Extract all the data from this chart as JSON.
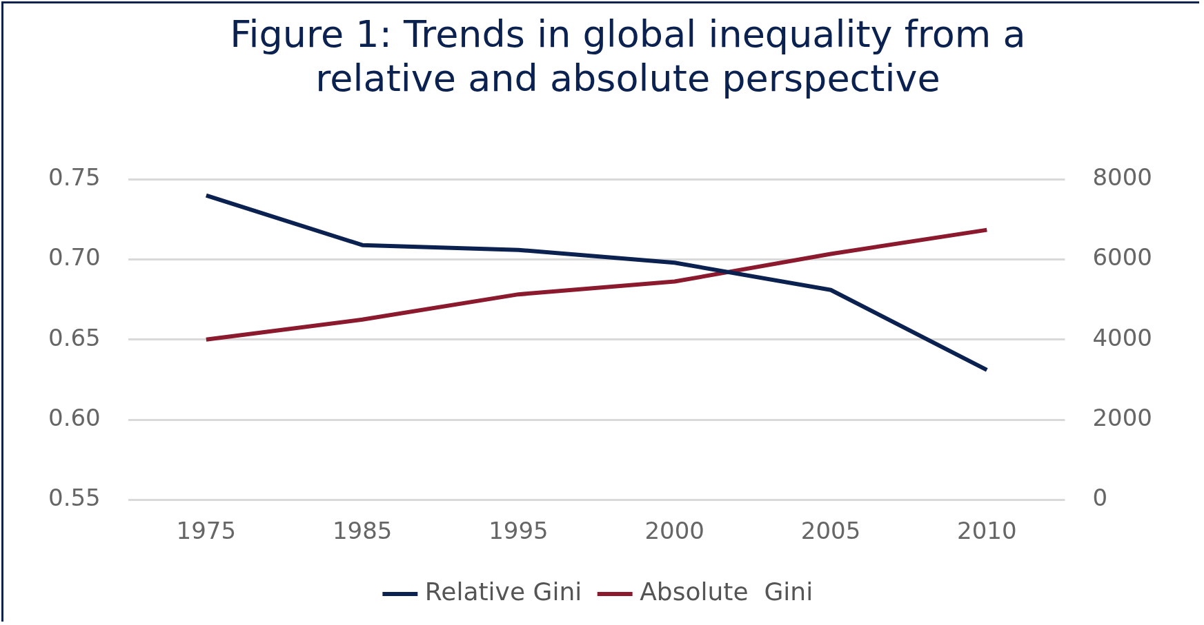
{
  "chart_data": {
    "type": "line",
    "title": "Figure 1: Trends in global inequality from a relative and absolute perspective",
    "categories": [
      "1975",
      "1985",
      "1995",
      "2000",
      "2005",
      "2010"
    ],
    "series": [
      {
        "name": "Relative Gini",
        "color": "#0b2150",
        "values": [
          0.74,
          0.709,
          0.706,
          0.698,
          0.681,
          0.631
        ]
      },
      {
        "name": "Absolute  Gini",
        "color": "#8b1a2e",
        "axis": "y2",
        "values": [
          4000,
          4500,
          5130,
          5450,
          6140,
          6740
        ]
      }
    ],
    "ylim": [
      0.55,
      0.75
    ],
    "yticks": [
      {
        "value": 0.55,
        "label": "0.55"
      },
      {
        "value": 0.6,
        "label": "0.60"
      },
      {
        "value": 0.65,
        "label": "0.65"
      },
      {
        "value": 0.7,
        "label": "0.70"
      },
      {
        "value": 0.75,
        "label": "0.75"
      }
    ],
    "y2lim": [
      0,
      8000
    ],
    "y2ticks": [
      0,
      2000,
      4000,
      6000,
      8000
    ],
    "grid": "y",
    "legend": "bottom",
    "marker": "none",
    "line_style": "solid"
  }
}
